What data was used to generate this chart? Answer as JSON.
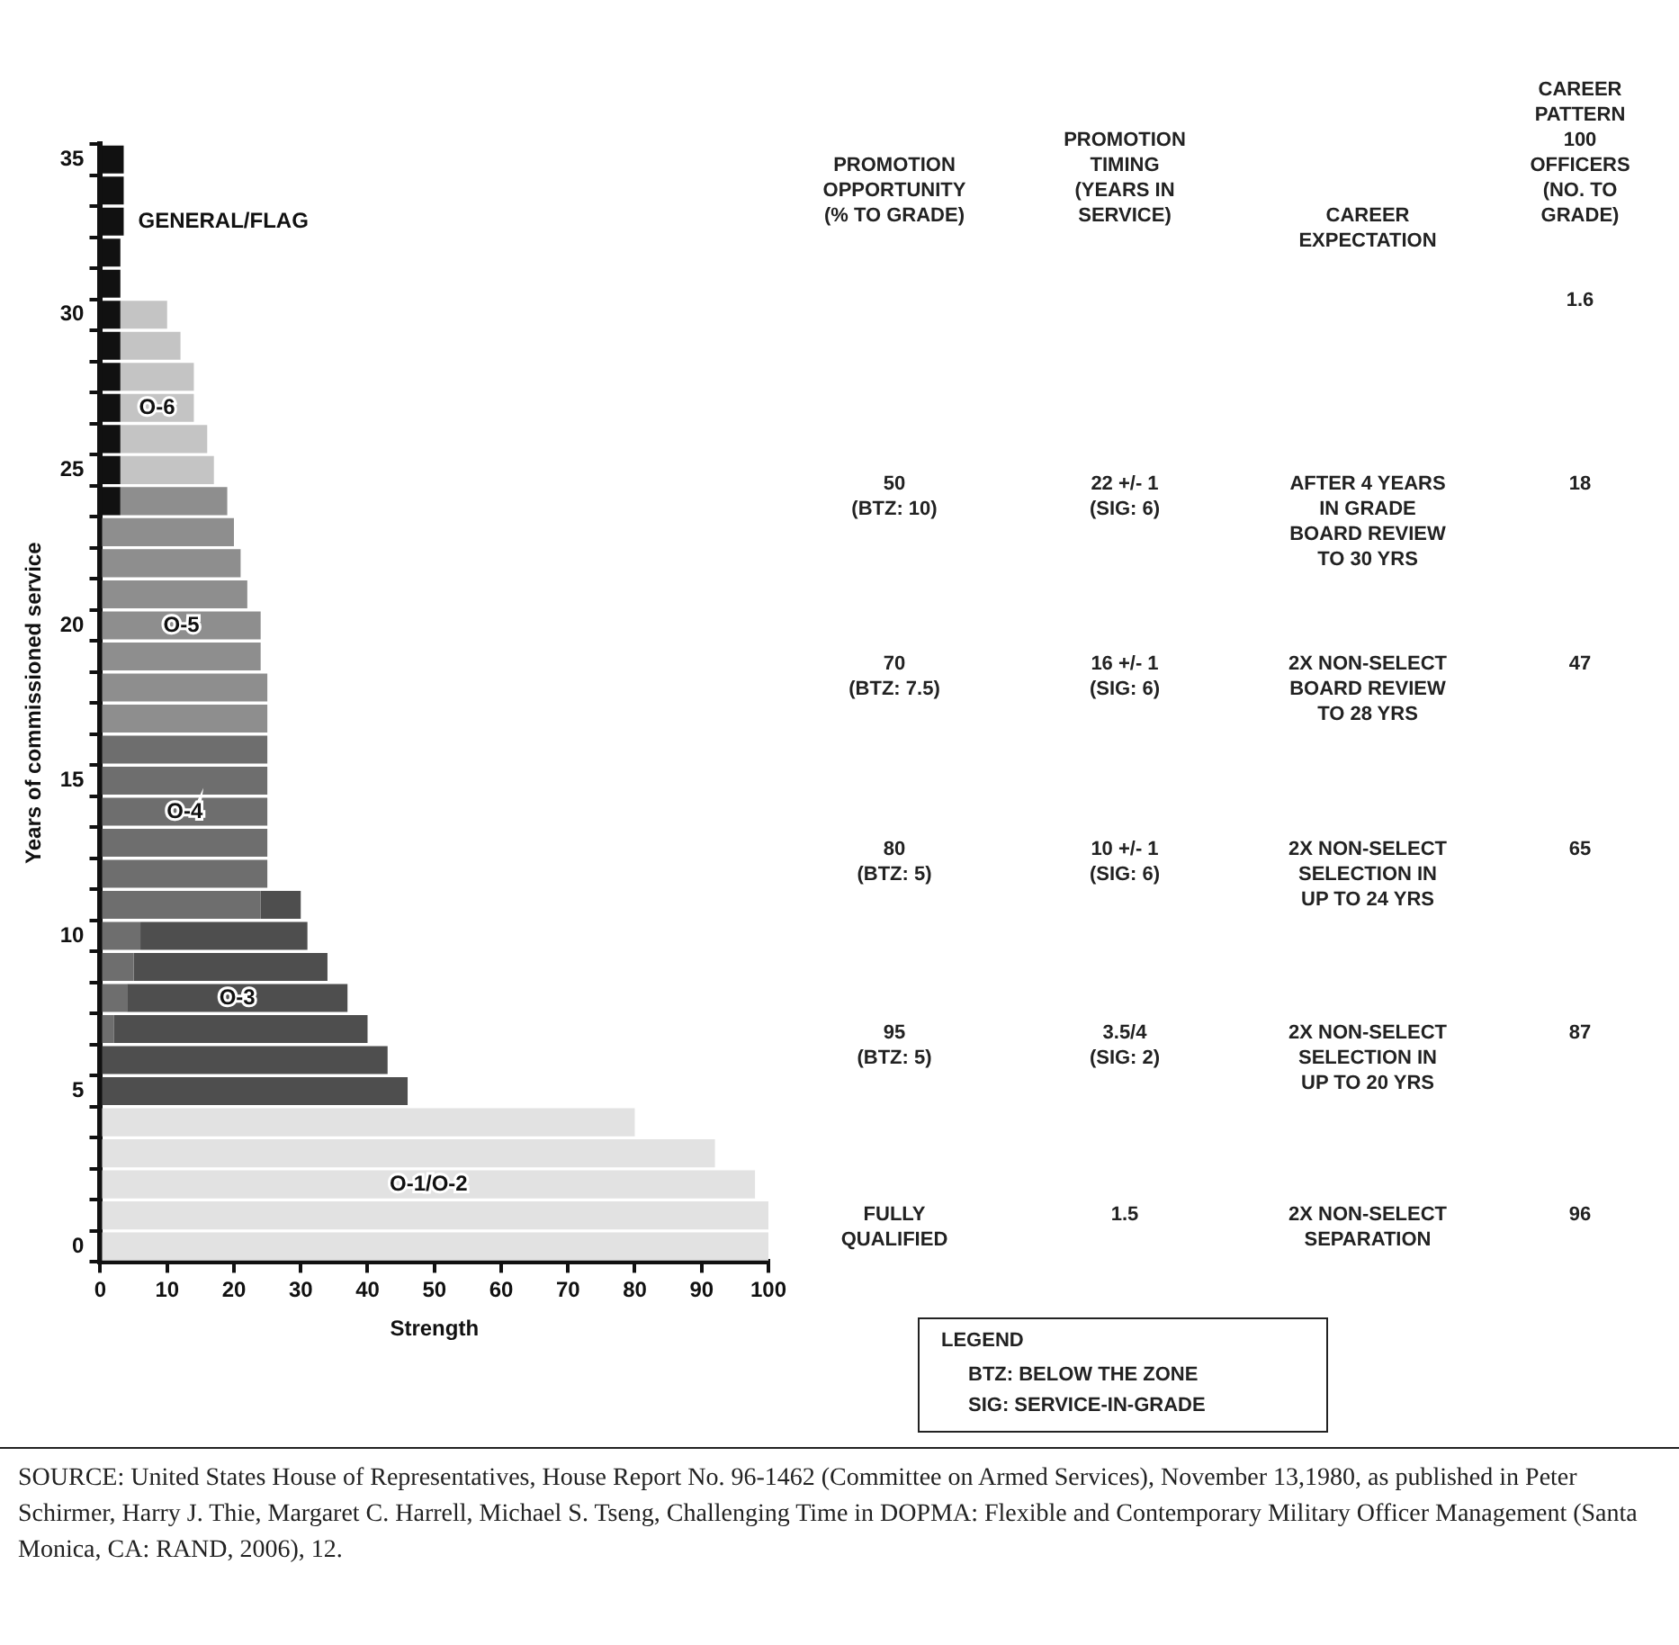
{
  "chart_data": {
    "type": "bar",
    "orientation": "horizontal",
    "stacked": true,
    "xlabel": "Strength",
    "ylabel": "Years of commissioned service",
    "categories": [
      "35",
      null,
      null,
      null,
      null,
      "30",
      null,
      null,
      null,
      null,
      "25",
      null,
      null,
      null,
      null,
      "20",
      null,
      null,
      null,
      null,
      "15",
      null,
      null,
      null,
      null,
      "10",
      null,
      null,
      null,
      null,
      "5",
      null,
      null,
      null,
      null,
      "0"
    ],
    "xlim": [
      0,
      100
    ],
    "xticks": [
      0,
      10,
      20,
      30,
      40,
      50,
      60,
      70,
      80,
      90,
      100
    ],
    "grid": false,
    "legend": false,
    "series": [
      {
        "name": "GENERAL/FLAG",
        "color": "#111111",
        "values": [
          3.5,
          3.5,
          3.5,
          3,
          3,
          3,
          3,
          3,
          3,
          3,
          3,
          3,
          null,
          null,
          null,
          null,
          null,
          null,
          null,
          null,
          null,
          null,
          null,
          null,
          null,
          null,
          null,
          null,
          null,
          null,
          null,
          null,
          null,
          null,
          null,
          null
        ]
      },
      {
        "name": "O-6",
        "color": "#c4c4c4",
        "values": [
          null,
          null,
          null,
          null,
          null,
          7,
          9,
          11,
          11,
          13,
          14,
          null,
          null,
          null,
          null,
          null,
          null,
          null,
          null,
          null,
          null,
          null,
          null,
          null,
          null,
          null,
          null,
          null,
          null,
          null,
          null,
          null,
          null,
          null,
          null,
          null
        ]
      },
      {
        "name": "O-5",
        "color": "#8e8e8e",
        "values": [
          null,
          null,
          null,
          null,
          null,
          null,
          null,
          null,
          null,
          null,
          null,
          16,
          20,
          21,
          22,
          24,
          24,
          25,
          25,
          null,
          null,
          null,
          null,
          null,
          null,
          null,
          null,
          null,
          null,
          null,
          null,
          null,
          null,
          null,
          null,
          null
        ]
      },
      {
        "name": "O-4",
        "color": "#6e6e6e",
        "values": [
          null,
          null,
          null,
          null,
          null,
          null,
          null,
          null,
          null,
          null,
          null,
          null,
          null,
          null,
          null,
          null,
          null,
          null,
          null,
          25,
          25,
          25,
          25,
          25,
          24,
          6,
          5,
          4,
          2,
          null,
          null,
          null,
          null,
          null,
          null,
          null
        ]
      },
      {
        "name": "O-3",
        "color": "#4e4e4e",
        "values": [
          null,
          null,
          null,
          null,
          null,
          null,
          null,
          null,
          null,
          null,
          null,
          null,
          null,
          null,
          null,
          null,
          null,
          null,
          null,
          null,
          null,
          null,
          null,
          null,
          6,
          25,
          29,
          33,
          38,
          43,
          46,
          null,
          null,
          null,
          null,
          null
        ]
      },
      {
        "name": "O-1/O-2",
        "color": "#e2e2e2",
        "values": [
          null,
          null,
          null,
          null,
          null,
          null,
          null,
          null,
          null,
          null,
          null,
          null,
          null,
          null,
          null,
          null,
          null,
          null,
          null,
          null,
          null,
          null,
          null,
          null,
          null,
          null,
          null,
          null,
          null,
          null,
          null,
          80,
          92,
          98,
          100,
          100
        ]
      }
    ],
    "annotations": [
      "PROMOTION\nOPPORTUNITY\n(% TO GRADE)",
      "PROMOTION\nTIMING\n(YEARS IN\nSERVICE)",
      "CAREER\nEXPECTATION",
      "CAREER\nPATTERN\n100 OFFICERS\n(NO. TO\nGRADE)",
      "1.6",
      "50\n(BTZ: 10)",
      "22 +/- 1\n(SIG: 6)",
      "AFTER 4 YEARS\nIN GRADE\nBOARD REVIEW\nTO 30 YRS",
      "18",
      "70\n(BTZ: 7.5)",
      "16 +/- 1\n(SIG: 6)",
      "2X NON-SELECT\nBOARD REVIEW\nTO 28 YRS",
      "47",
      "80\n(BTZ: 5)",
      "10 +/- 1\n(SIG: 6)",
      "2X NON-SELECT\nSELECTION IN\nUP TO 24 YRS",
      "65",
      "95\n(BTZ: 5)",
      "3.5/4\n(SIG: 2)",
      "2X NON-SELECT\nSELECTION IN\nUP TO 20 YRS",
      "87",
      "FULLY\nQUALIFIED",
      "1.5",
      "2X NON-SELECT\nSEPARATION",
      "96",
      "LEGEND",
      "BTZ: BELOW THE ZONE",
      "SIG: SERVICE-IN-GRADE",
      "SOURCE: United States House of Representatives, House Report No. 96-1462 (Committee on Armed Services), November 13,1980, as published in Peter Schirmer, Harry J. Thie, Margaret C. Harrell, Michael S. Tseng, Challenging Time in DOPMA: Flexible and Contemporary Military Officer Management (Santa Monica, CA: RAND, 2006), 12."
    ]
  }
}
